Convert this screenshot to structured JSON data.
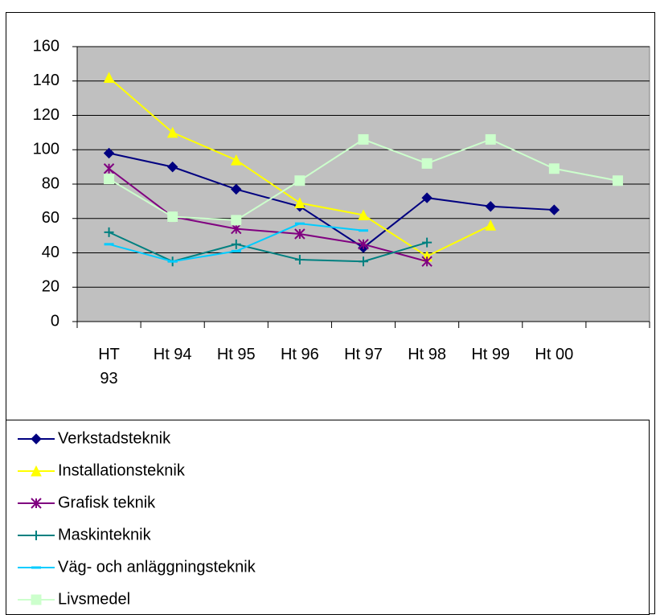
{
  "chart_data": {
    "type": "line",
    "categories": [
      "HT 93",
      "Ht 94",
      "Ht 95",
      "Ht 96",
      "Ht 97",
      "Ht 98",
      "Ht 99",
      "Ht 00",
      null
    ],
    "series": [
      {
        "name": "Verkstadsteknik",
        "color": "#000080",
        "marker": "diamond",
        "values": [
          98,
          90,
          77,
          67,
          43,
          72,
          67,
          65,
          null
        ]
      },
      {
        "name": "Installationsteknik",
        "color": "#FFFF00",
        "marker": "triangle",
        "values": [
          142,
          110,
          94,
          69,
          62,
          38,
          56,
          null,
          null
        ]
      },
      {
        "name": "Grafisk teknik",
        "color": "#800080",
        "marker": "asterisk",
        "values": [
          89,
          61,
          54,
          51,
          45,
          35,
          null,
          null,
          null
        ]
      },
      {
        "name": "Maskinteknik",
        "color": "#008080",
        "marker": "plus",
        "values": [
          52,
          35,
          45,
          36,
          35,
          46,
          null,
          null,
          null
        ]
      },
      {
        "name": "Väg- och anläggningsteknik",
        "color": "#00CCFF",
        "marker": "dash",
        "values": [
          45,
          35,
          41,
          57,
          53,
          null,
          null,
          null,
          null
        ]
      },
      {
        "name": "Livsmedel",
        "color": "#CCFFCC",
        "marker": "square",
        "values": [
          83,
          61,
          59,
          82,
          106,
          92,
          106,
          89,
          82
        ]
      }
    ],
    "ylim": [
      0,
      160
    ],
    "yticks": [
      0,
      20,
      40,
      60,
      80,
      100,
      120,
      140,
      160
    ],
    "grid": true,
    "legend": "bottom"
  }
}
